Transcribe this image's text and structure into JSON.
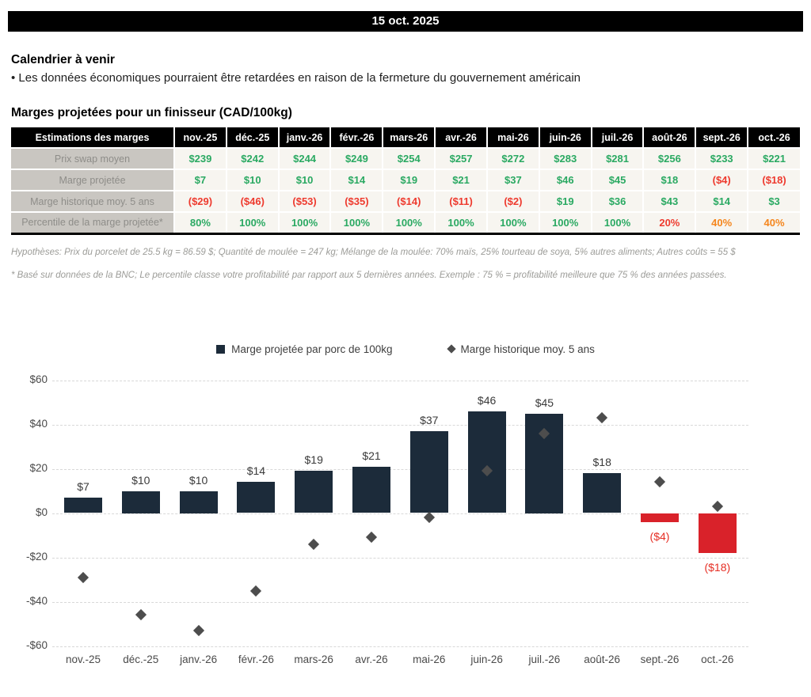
{
  "header": {
    "date": "15 oct. 2025"
  },
  "calendar": {
    "title": "Calendrier à venir",
    "bullet": "• Les données économiques pourraient être retardées en raison de la fermeture du gouvernement américain"
  },
  "table": {
    "title": "Marges projetées pour un finisseur (CAD/100kg)",
    "corner_label": "Estimations des marges",
    "months": [
      "nov.-25",
      "déc.-25",
      "janv.-26",
      "févr.-26",
      "mars-26",
      "avr.-26",
      "mai-26",
      "juin-26",
      "juil.-26",
      "août-26",
      "sept.-26",
      "oct.-26"
    ],
    "rows": [
      {
        "label": "Prix swap moyen",
        "values": [
          "$239",
          "$242",
          "$244",
          "$249",
          "$254",
          "$257",
          "$272",
          "$283",
          "$281",
          "$256",
          "$233",
          "$221"
        ],
        "styles": [
          "g",
          "g",
          "g",
          "g",
          "g",
          "g",
          "g",
          "g",
          "g",
          "g",
          "g",
          "g"
        ]
      },
      {
        "label": "Marge projetée",
        "values": [
          "$7",
          "$10",
          "$10",
          "$14",
          "$19",
          "$21",
          "$37",
          "$46",
          "$45",
          "$18",
          "($4)",
          "($18)"
        ],
        "styles": [
          "g",
          "g",
          "g",
          "g",
          "g",
          "g",
          "g",
          "g",
          "g",
          "g",
          "r",
          "r"
        ]
      },
      {
        "label": "Marge historique moy. 5 ans",
        "values": [
          "($29)",
          "($46)",
          "($53)",
          "($35)",
          "($14)",
          "($11)",
          "($2)",
          "$19",
          "$36",
          "$43",
          "$14",
          "$3"
        ],
        "styles": [
          "r",
          "r",
          "r",
          "r",
          "r",
          "r",
          "r",
          "g",
          "g",
          "g",
          "g",
          "g"
        ]
      },
      {
        "label": "Percentile de la marge projetée*",
        "values": [
          "80%",
          "100%",
          "100%",
          "100%",
          "100%",
          "100%",
          "100%",
          "100%",
          "100%",
          "20%",
          "40%",
          "40%"
        ],
        "styles": [
          "g",
          "g",
          "g",
          "g",
          "g",
          "g",
          "g",
          "g",
          "g",
          "r",
          "o",
          "o"
        ]
      }
    ]
  },
  "notes": {
    "hypotheses": "Hypothèses: Prix du porcelet de 25.5 kg = 86.59 $; Quantité de moulée = 247 kg; Mélange de la moulée: 70% maïs, 25% tourteau de soya, 5% autres aliments; Autres coûts = 55 $",
    "footnote": "* Basé sur données de la BNC; Le percentile classe votre profitabilité par rapport aux 5 dernières années. Exemple : 75 % = profitabilité meilleure que 75 % des années passées."
  },
  "chart_data": {
    "type": "bar",
    "categories": [
      "nov.-25",
      "déc.-25",
      "janv.-26",
      "févr.-26",
      "mars-26",
      "avr.-26",
      "mai-26",
      "juin-26",
      "juil.-26",
      "août-26",
      "sept.-26",
      "oct.-26"
    ],
    "series": [
      {
        "name": "Marge projetée par porc de 100kg",
        "type": "bar",
        "values": [
          7,
          10,
          10,
          14,
          19,
          21,
          37,
          46,
          45,
          18,
          -4,
          -18
        ],
        "labels": [
          "$7",
          "$10",
          "$10",
          "$14",
          "$19",
          "$21",
          "$37",
          "$46",
          "$45",
          "$18",
          "($4)",
          "($18)"
        ]
      },
      {
        "name": "Marge historique moy. 5 ans",
        "type": "scatter",
        "marker": "diamond",
        "values": [
          -29,
          -46,
          -53,
          -35,
          -14,
          -11,
          -2,
          19,
          36,
          43,
          14,
          3
        ]
      }
    ],
    "ylim": [
      -60,
      60
    ],
    "ytick_labels": [
      "$60",
      "$40",
      "$20",
      "$0",
      "-$20",
      "-$40",
      "-$60"
    ],
    "ytick_values": [
      60,
      40,
      20,
      0,
      -20,
      -40,
      -60
    ],
    "grid": "horizontal-dashed",
    "legend_position": "top"
  },
  "colors": {
    "green": "#2aa962",
    "red": "#ee3a2e",
    "orange": "#f5861d",
    "bar_positive": "#1c2b3a",
    "bar_negative": "#d9222a",
    "diamond": "#4d4d4d",
    "banner_bg": "#000000",
    "banner_text": "#ffffff",
    "label_col_bg": "#c9c6c1",
    "cell_bg": "#f7f5f0"
  }
}
